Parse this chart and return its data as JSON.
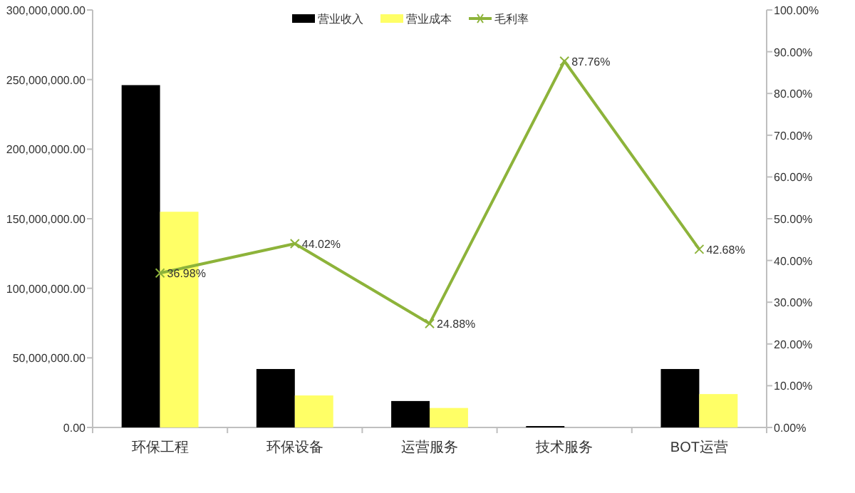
{
  "chart_data": {
    "type": "bar",
    "categories": [
      "环保工程",
      "环保设备",
      "运营服务",
      "技术服务",
      "BOT运营"
    ],
    "series": [
      {
        "name": "营业收入",
        "color": "#000000",
        "values": [
          246000000,
          42000000,
          19000000,
          1000000,
          42000000
        ]
      },
      {
        "name": "营业成本",
        "color": "#ffff66",
        "values": [
          155000000,
          23000000,
          14000000,
          null,
          24000000
        ]
      },
      {
        "name": "毛利率",
        "type": "line",
        "axis": "y2",
        "color": "#8db33a",
        "marker": "cross",
        "values": [
          36.98,
          44.02,
          24.88,
          87.76,
          42.68
        ],
        "value_labels": [
          "36.98%",
          "44.02%",
          "24.88%",
          "87.76%",
          "42.68%"
        ]
      }
    ],
    "ylim": [
      0,
      300000000
    ],
    "yticks": [
      {
        "value": 0,
        "label": "0.00"
      },
      {
        "value": 50000000,
        "label": "50,000,000.00"
      },
      {
        "value": 100000000,
        "label": "100,000,000.00"
      },
      {
        "value": 150000000,
        "label": "150,000,000.00"
      },
      {
        "value": 200000000,
        "label": "200,000,000.00"
      },
      {
        "value": 250000000,
        "label": "250,000,000.00"
      },
      {
        "value": 300000000,
        "label": "300,000,000.00"
      }
    ],
    "y2lim": [
      0,
      100
    ],
    "y2ticks": [
      {
        "value": 0,
        "label": "0.00%"
      },
      {
        "value": 10,
        "label": "10.00%"
      },
      {
        "value": 20,
        "label": "20.00%"
      },
      {
        "value": 30,
        "label": "30.00%"
      },
      {
        "value": 40,
        "label": "40.00%"
      },
      {
        "value": 50,
        "label": "50.00%"
      },
      {
        "value": 60,
        "label": "60.00%"
      },
      {
        "value": 70,
        "label": "70.00%"
      },
      {
        "value": 80,
        "label": "80.00%"
      },
      {
        "value": 90,
        "label": "90.00%"
      },
      {
        "value": 100,
        "label": "100.00%"
      }
    ],
    "legend": "top",
    "grid": false
  }
}
